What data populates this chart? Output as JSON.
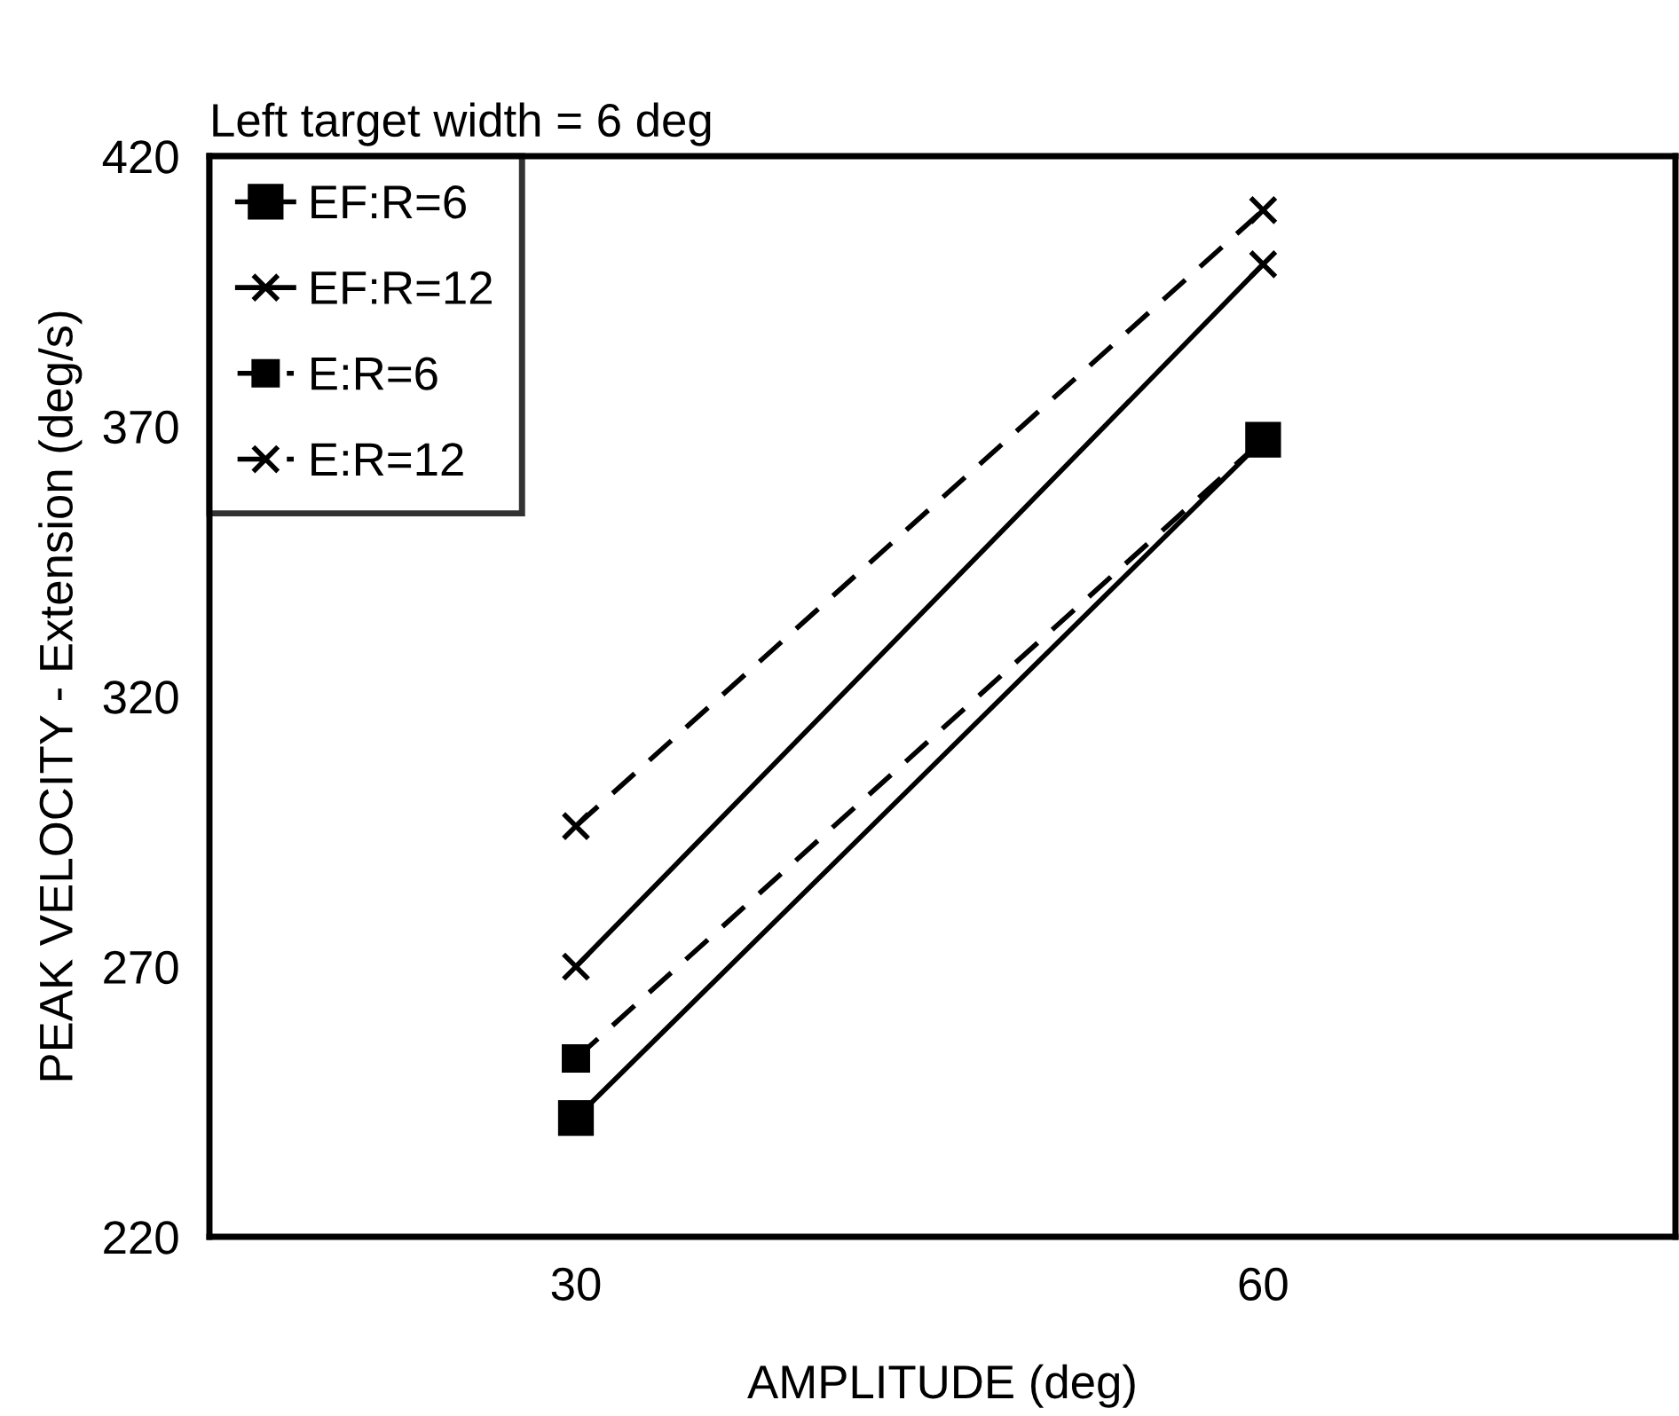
{
  "chart_data": {
    "type": "line",
    "title": "Left target width = 6 deg",
    "xlabel": "AMPLITUDE (deg)",
    "ylabel": "PEAK VELOCITY - Extension (deg/s)",
    "x": [
      30,
      60
    ],
    "xlim": [
      14,
      78
    ],
    "xticks": [
      30,
      60
    ],
    "ylim": [
      220,
      420
    ],
    "yticks": [
      220,
      270,
      320,
      370,
      420
    ],
    "grid": false,
    "legend": "top left",
    "series": [
      {
        "name": "EF:R=6",
        "color": "#000000",
        "values": [
          242,
          367.5
        ],
        "marker": "square",
        "line_style": "solid"
      },
      {
        "name": "EF:R=12",
        "color": "#000000",
        "values": [
          270,
          400
        ],
        "marker": "cross",
        "line_style": "solid"
      },
      {
        "name": "E:R=6",
        "color": "#000000",
        "values": [
          253,
          367.5
        ],
        "marker": "square",
        "line_style": "dashed"
      },
      {
        "name": "E:R=12",
        "color": "#000000",
        "values": [
          296,
          410
        ],
        "marker": "cross",
        "line_style": "dashed"
      }
    ]
  }
}
